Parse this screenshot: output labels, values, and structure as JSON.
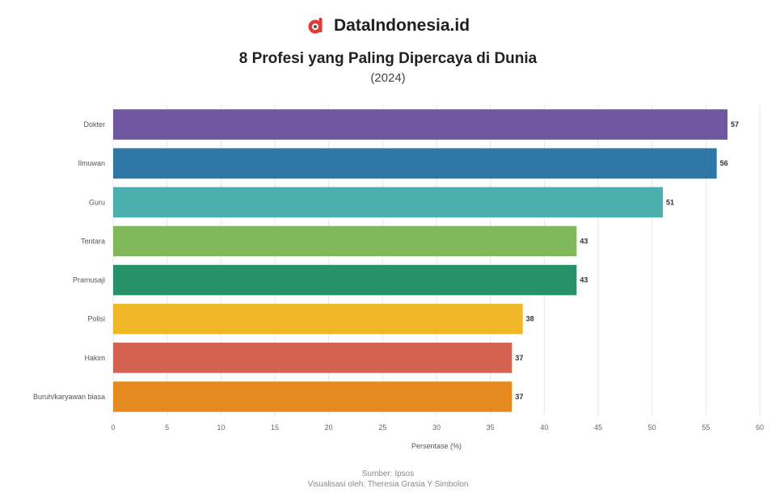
{
  "brand": {
    "name": "DataIndonesia.id",
    "logo_icon": "dataindonesia-logo-icon",
    "logo_color": "#e53935"
  },
  "chart_data": {
    "type": "bar",
    "orientation": "horizontal",
    "title": "8 Profesi yang Paling Dipercaya di Dunia",
    "subtitle": "(2024)",
    "categories": [
      "Dokter",
      "Ilmuwan",
      "Guru",
      "Tentara",
      "Pramusaji",
      "Polisi",
      "Hakim",
      "Buruh/karyawan biasa"
    ],
    "values": [
      57,
      56,
      51,
      43,
      43,
      38,
      37,
      37
    ],
    "colors": [
      "#6f57a0",
      "#2f77a5",
      "#4bafb0",
      "#80b85c",
      "#27926a",
      "#efb628",
      "#d36253",
      "#e48a1f"
    ],
    "xlabel": "Persentase (%)",
    "ylabel": "",
    "xlim": [
      0,
      60
    ],
    "xticks": [
      0,
      5,
      10,
      15,
      20,
      25,
      30,
      35,
      40,
      45,
      50,
      55,
      60
    ],
    "grid": true,
    "legend": "none"
  },
  "footer": {
    "source": "Sumber: Ipsos",
    "visualized_by": "Visualisasi oleh: Theresia Grasia Y Simbolon"
  }
}
